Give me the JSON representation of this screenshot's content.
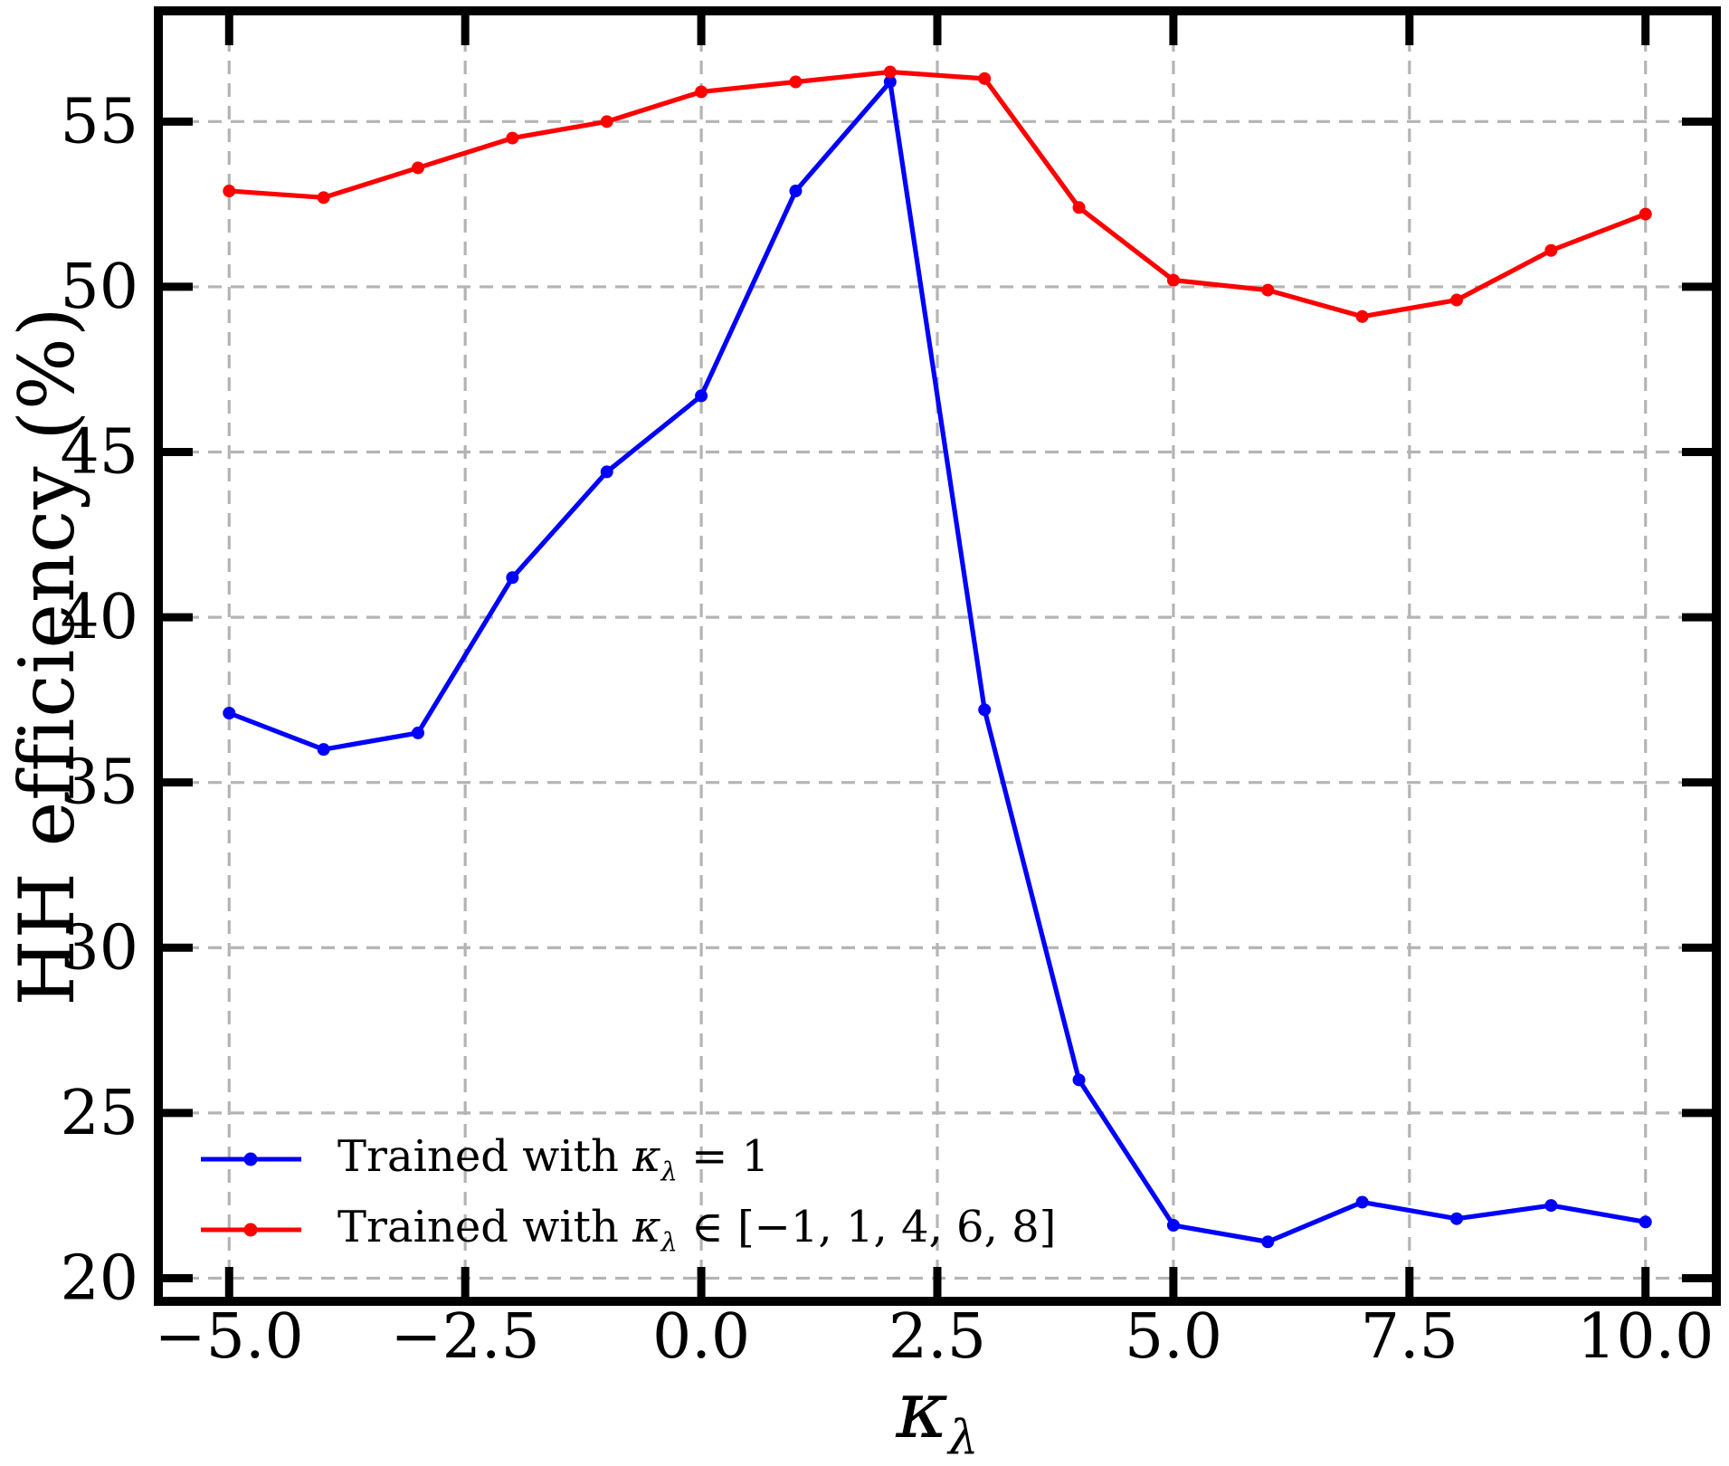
{
  "figure": {
    "background": "#ffffff"
  },
  "chart_data": {
    "type": "line",
    "title": "",
    "xlabel_symbol": "κ",
    "xlabel_subscript": "λ",
    "ylabel": "HH efficiency (%)",
    "xlim": [
      -5.75,
      10.75
    ],
    "ylim": [
      19.3,
      58.35
    ],
    "grid": {
      "visible": true,
      "style": "dashed",
      "color": "#b4b4b4"
    },
    "axes_color": "#000000",
    "legend_position": "lower left",
    "x_ticks": {
      "values": [
        -5.0,
        -2.5,
        0.0,
        2.5,
        5.0,
        7.5,
        10.0
      ],
      "labels": [
        "−5.0",
        "−2.5",
        "0.0",
        "2.5",
        "5.0",
        "7.5",
        "10.0"
      ]
    },
    "y_ticks": {
      "values": [
        20,
        25,
        30,
        35,
        40,
        45,
        50,
        55
      ],
      "labels": [
        "20",
        "25",
        "30",
        "35",
        "40",
        "45",
        "50",
        "55"
      ]
    },
    "x": [
      -5,
      -4,
      -3,
      -2,
      -1,
      0,
      1,
      2,
      3,
      4,
      5,
      6,
      7,
      8,
      9,
      10
    ],
    "series": [
      {
        "name": "Trained with κλ = 1",
        "color": "#0000ff",
        "marker": "circle",
        "values": [
          37.1,
          36.0,
          36.5,
          41.2,
          44.4,
          46.7,
          52.9,
          56.2,
          37.2,
          26.0,
          21.6,
          21.1,
          22.3,
          21.8,
          22.2,
          21.7
        ],
        "legend": {
          "prefix": "Trained with ",
          "symbol": "κ",
          "subscript": "λ",
          "suffix": " = 1"
        }
      },
      {
        "name": "Trained with κλ ∈ [−1, 1, 4, 6, 8]",
        "color": "#ff0000",
        "marker": "circle",
        "values": [
          52.9,
          52.7,
          53.6,
          54.5,
          55.0,
          55.9,
          56.2,
          56.5,
          56.3,
          52.4,
          50.2,
          49.9,
          49.1,
          49.6,
          51.1,
          52.2
        ],
        "legend": {
          "prefix": "Trained with ",
          "symbol": "κ",
          "subscript": "λ",
          "suffix": " ∈ [−1, 1, 4, 6, 8]"
        }
      }
    ]
  }
}
